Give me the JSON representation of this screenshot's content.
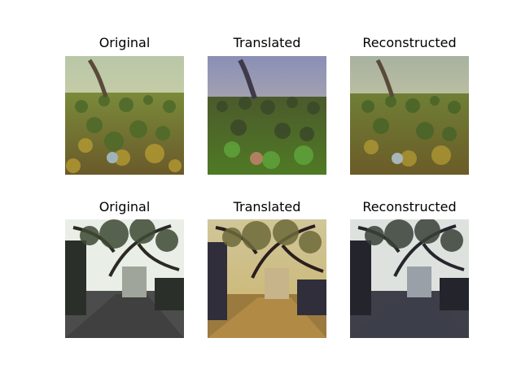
{
  "figure": {
    "rows": [
      {
        "panels": [
          {
            "title": "Original"
          },
          {
            "title": "Translated"
          },
          {
            "title": "Reconstructed"
          }
        ]
      },
      {
        "panels": [
          {
            "title": "Original"
          },
          {
            "title": "Translated"
          },
          {
            "title": "Reconstructed"
          }
        ]
      }
    ]
  }
}
